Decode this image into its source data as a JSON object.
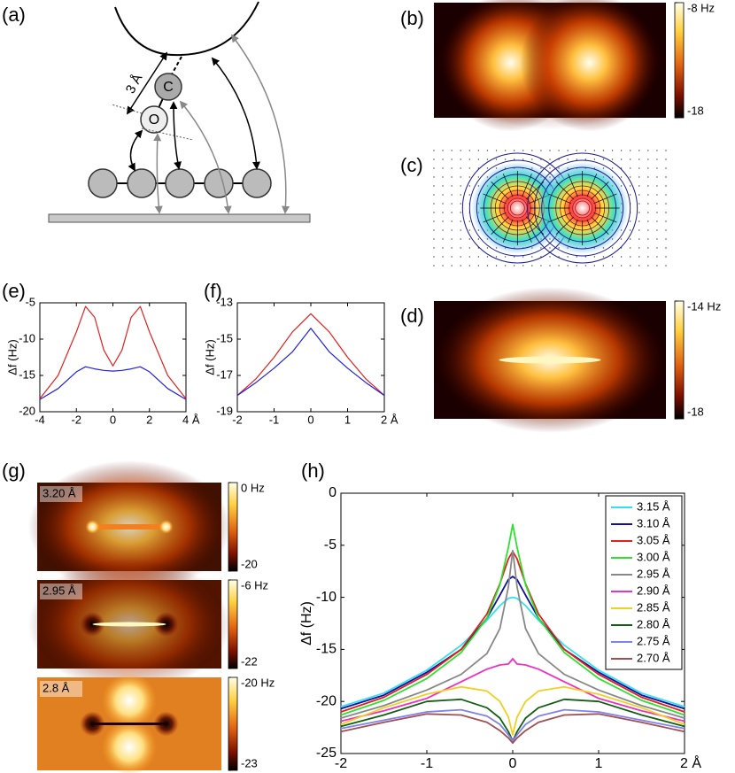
{
  "diagram": {
    "panel": "(a)",
    "distance_label": "3 Å",
    "atoms": [
      "C",
      "O"
    ]
  },
  "chart_data": [
    {
      "type": "heatmap",
      "panel": "(b)",
      "clim": [
        -18,
        -8
      ],
      "colorbar_ticks": [
        {
          "value": -8,
          "label": "-8 Hz"
        },
        -18
      ]
    },
    {
      "type": "vector_field",
      "panel": "(c)"
    },
    {
      "type": "heatmap",
      "panel": "(d)",
      "clim": [
        -18,
        -14
      ],
      "colorbar_ticks": [
        {
          "value": -14,
          "label": "-14 Hz"
        },
        -18
      ]
    },
    {
      "type": "line",
      "panel": "(e)",
      "y_label": "Δf (Hz)",
      "x": [
        -4,
        -3,
        -2,
        -1.5,
        -1,
        -0.5,
        0,
        0.5,
        1,
        1.5,
        2,
        3,
        4
      ],
      "series": [
        {
          "color": "#e02020",
          "values": [
            -18.2,
            -15,
            -9,
            -5.5,
            -7,
            -11.5,
            -13.7,
            -11.5,
            -7,
            -5.5,
            -9,
            -15,
            -18.2
          ]
        },
        {
          "color": "#2020e0",
          "values": [
            -18.3,
            -16.8,
            -14.5,
            -13.8,
            -14.1,
            -14.3,
            -14.4,
            -14.3,
            -14.1,
            -13.8,
            -14.5,
            -16.8,
            -18.3
          ]
        }
      ],
      "xlim": [
        -4,
        4
      ],
      "xticks": [
        -4,
        -2,
        0,
        2,
        {
          "value": 4,
          "label": "4 Å"
        }
      ],
      "ylim": [
        -20,
        -5
      ],
      "yticks": [
        -5,
        -10,
        -15,
        -20
      ]
    },
    {
      "type": "line",
      "panel": "(f)",
      "y_label": "Δf (Hz)",
      "x": [
        -2,
        -1.5,
        -1,
        -0.5,
        0,
        0.5,
        1,
        1.5,
        2
      ],
      "series": [
        {
          "color": "#e02020",
          "values": [
            -18.1,
            -17.2,
            -16,
            -14.6,
            -13.6,
            -14.6,
            -16,
            -17.2,
            -18.1
          ]
        },
        {
          "color": "#2020e0",
          "values": [
            -18.1,
            -17.4,
            -16.6,
            -15.7,
            -14.4,
            -15.7,
            -16.6,
            -17.4,
            -18.1
          ]
        }
      ],
      "xlim": [
        -2,
        2
      ],
      "xticks": [
        -2,
        -1,
        0,
        1,
        {
          "value": 2,
          "label": "2 Å"
        }
      ],
      "ylim": [
        -19,
        -13
      ],
      "yticks": [
        -13,
        -15,
        -17,
        -19
      ]
    },
    {
      "type": "heatmap",
      "panel": "(g)",
      "label": "3.20 Å",
      "clim": [
        -20,
        0
      ],
      "colorbar_ticks": [
        {
          "value": 0,
          "label": "0 Hz"
        },
        -20
      ]
    },
    {
      "type": "heatmap",
      "label": "2.95 Å",
      "clim": [
        -22,
        -6
      ],
      "colorbar_ticks": [
        {
          "value": -6,
          "label": "-6 Hz"
        },
        -22
      ]
    },
    {
      "type": "heatmap",
      "label": "2.8 Å",
      "clim": [
        -23,
        -20
      ],
      "colorbar_ticks": [
        {
          "value": -20,
          "label": "-20 Hz"
        },
        -23
      ]
    },
    {
      "type": "line",
      "panel": "(h)",
      "y_label": "Δf (Hz)",
      "x": [
        -2,
        -1.5,
        -1,
        -0.6,
        -0.3,
        -0.15,
        -0.05,
        0,
        0.05,
        0.15,
        0.3,
        0.6,
        1,
        1.5,
        2
      ],
      "series": [
        {
          "name": "3.15 Å",
          "color": "#33e0f0",
          "values": [
            -20.5,
            -19.2,
            -17,
            -14.6,
            -12.2,
            -10.8,
            -10.1,
            -10,
            -10.1,
            -10.8,
            -12.2,
            -14.6,
            -17,
            -19.2,
            -20.5
          ]
        },
        {
          "name": "3.10 Å",
          "color": "#1010a0",
          "values": [
            -20.7,
            -19.4,
            -17.2,
            -15,
            -12,
            -9.8,
            -8.3,
            -8,
            -8.3,
            -9.8,
            -12,
            -15,
            -17.2,
            -19.4,
            -20.7
          ]
        },
        {
          "name": "3.05 Å",
          "color": "#e02020",
          "values": [
            -21,
            -19.6,
            -17.4,
            -15,
            -11.6,
            -8.7,
            -6.3,
            -5.6,
            -6.3,
            -8.7,
            -11.6,
            -15,
            -17.4,
            -19.6,
            -21
          ]
        },
        {
          "name": "3.00 Å",
          "color": "#30e030",
          "values": [
            -21.3,
            -19.9,
            -17.8,
            -15.3,
            -12,
            -8.8,
            -5.2,
            -3,
            -5.2,
            -8.8,
            -12,
            -15.3,
            -17.8,
            -19.9,
            -21.3
          ]
        },
        {
          "name": "2.95 Å",
          "color": "#888888",
          "values": [
            -21.6,
            -20.4,
            -18.9,
            -17.4,
            -15.4,
            -13,
            -9,
            -5.5,
            -9,
            -13,
            -15.4,
            -17.4,
            -18.9,
            -20.4,
            -21.6
          ]
        },
        {
          "name": "2.90 Å",
          "color": "#f030c0",
          "values": [
            -21.9,
            -20.9,
            -19.7,
            -18.1,
            -16.9,
            -16.5,
            -16.4,
            -15.9,
            -16.4,
            -16.5,
            -16.9,
            -18.1,
            -19.7,
            -20.9,
            -21.9
          ]
        },
        {
          "name": "2.85 Å",
          "color": "#f0d020",
          "values": [
            -22.2,
            -20.6,
            -19.3,
            -18.6,
            -19,
            -20,
            -21.5,
            -23.2,
            -21.5,
            -20,
            -19,
            -18.6,
            -19.3,
            -20.6,
            -22.2
          ]
        },
        {
          "name": "2.80 Å",
          "color": "#106010",
          "values": [
            -22.4,
            -21.3,
            -20,
            -19.8,
            -20.6,
            -21.6,
            -22.9,
            -23.8,
            -22.9,
            -21.6,
            -20.6,
            -19.8,
            -20,
            -21.3,
            -22.4
          ]
        },
        {
          "name": "2.75 Å",
          "color": "#8080f0",
          "values": [
            -22.6,
            -21.8,
            -21,
            -20.8,
            -21.4,
            -22.2,
            -23.2,
            -23.8,
            -23.2,
            -22.2,
            -21.4,
            -20.8,
            -21,
            -21.8,
            -22.6
          ]
        },
        {
          "name": "2.70 Å",
          "color": "#a05050",
          "values": [
            -22.9,
            -22,
            -21.2,
            -21.3,
            -22,
            -22.8,
            -23.5,
            -24,
            -23.5,
            -22.8,
            -22,
            -21.3,
            -21.2,
            -22,
            -22.9
          ]
        }
      ],
      "xlim": [
        -2,
        2
      ],
      "xticks": [
        -2,
        -1,
        0,
        1,
        {
          "value": 2,
          "label": "2 Å"
        }
      ],
      "ylim": [
        -25,
        0
      ],
      "yticks": [
        0,
        -5,
        -10,
        -15,
        -20,
        -25
      ],
      "legend": "upper right"
    }
  ]
}
